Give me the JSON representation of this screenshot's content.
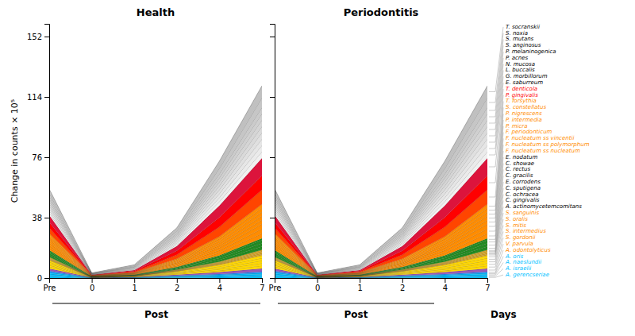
{
  "chart_data": [
    {
      "type": "area",
      "stacked": true,
      "title": "Health",
      "ylabel": "Change in counts × 10⁵",
      "categories": [
        "Pre",
        "0",
        "1",
        "2",
        "4",
        "7"
      ],
      "ylim": [
        0,
        160
      ],
      "yticks": [
        0,
        38,
        76,
        114,
        152
      ],
      "annotations": [
        "Post"
      ],
      "series": [
        {
          "color": "#00BFFF",
          "values": [
            0.9,
            0.05,
            0.1,
            0.3,
            0.5,
            0.8
          ]
        },
        {
          "color": "#00BFFF",
          "values": [
            0.9,
            0.05,
            0.1,
            0.3,
            0.5,
            0.8
          ]
        },
        {
          "color": "#00BFFF",
          "values": [
            0.9,
            0.05,
            0.1,
            0.3,
            0.5,
            0.8
          ]
        },
        {
          "color": "#00BFFF",
          "values": [
            0.9,
            0.05,
            0.1,
            0.3,
            0.5,
            0.8
          ]
        },
        {
          "color": "#1E90FF",
          "values": [
            0.9,
            0.05,
            0.1,
            0.3,
            0.5,
            0.8
          ]
        },
        {
          "color": "#9B59B6",
          "values": [
            1.5,
            0.08,
            0.15,
            0.6,
            1.2,
            2.0
          ]
        },
        {
          "color": "#FFD700",
          "values": [
            1.2,
            0.07,
            0.15,
            0.5,
            1.0,
            1.8
          ]
        },
        {
          "color": "#FFD700",
          "values": [
            1.0,
            0.06,
            0.12,
            0.4,
            0.9,
            1.6
          ]
        },
        {
          "color": "#FFD700",
          "values": [
            1.0,
            0.06,
            0.12,
            0.4,
            0.9,
            1.6
          ]
        },
        {
          "color": "#FFD700",
          "values": [
            1.0,
            0.06,
            0.12,
            0.4,
            0.9,
            1.6
          ]
        },
        {
          "color": "#FFD700",
          "values": [
            1.0,
            0.06,
            0.12,
            0.4,
            0.9,
            1.6
          ]
        },
        {
          "color": "#DAA520",
          "values": [
            0.4,
            0.03,
            0.06,
            0.2,
            0.4,
            0.7
          ]
        },
        {
          "color": "#DAA520",
          "values": [
            0.4,
            0.03,
            0.06,
            0.2,
            0.4,
            0.7
          ]
        },
        {
          "color": "#DAA520",
          "values": [
            0.4,
            0.03,
            0.06,
            0.2,
            0.4,
            0.7
          ]
        },
        {
          "color": "#DAA520",
          "values": [
            0.4,
            0.03,
            0.06,
            0.2,
            0.4,
            0.7
          ]
        },
        {
          "color": "#DAA520",
          "values": [
            0.4,
            0.03,
            0.06,
            0.2,
            0.4,
            0.7
          ]
        },
        {
          "color": "#228B22",
          "values": [
            1.2,
            0.07,
            0.15,
            0.5,
            1.1,
            2.0
          ]
        },
        {
          "color": "#228B22",
          "values": [
            1.2,
            0.07,
            0.15,
            0.5,
            1.1,
            2.0
          ]
        },
        {
          "color": "#228B22",
          "values": [
            1.2,
            0.07,
            0.15,
            0.5,
            1.1,
            2.0
          ]
        },
        {
          "color": "#228B22",
          "values": [
            0.8,
            0.05,
            0.1,
            0.3,
            0.7,
            1.3
          ]
        },
        {
          "color": "#FF8C00",
          "values": [
            1.5,
            0.08,
            0.18,
            0.7,
            1.6,
            3.0
          ]
        },
        {
          "color": "#FF8C00",
          "values": [
            1.5,
            0.08,
            0.18,
            0.7,
            1.6,
            3.0
          ]
        },
        {
          "color": "#FF8C00",
          "values": [
            1.5,
            0.08,
            0.18,
            0.7,
            1.6,
            3.0
          ]
        },
        {
          "color": "#FF8C00",
          "values": [
            1.2,
            0.07,
            0.15,
            0.6,
            1.4,
            2.5
          ]
        },
        {
          "color": "#FF8C00",
          "values": [
            1.2,
            0.07,
            0.15,
            0.6,
            1.4,
            2.5
          ]
        },
        {
          "color": "#FF8C00",
          "values": [
            1.2,
            0.07,
            0.15,
            0.6,
            1.4,
            2.5
          ]
        },
        {
          "color": "#FF8C00",
          "values": [
            1.2,
            0.07,
            0.15,
            0.6,
            1.4,
            2.5
          ]
        },
        {
          "color": "#FF8C00",
          "values": [
            1.2,
            0.07,
            0.15,
            0.6,
            1.4,
            2.5
          ]
        },
        {
          "color": "#FF4500",
          "values": [
            3.5,
            0.15,
            0.5,
            2.5,
            6.0,
            9.0
          ]
        },
        {
          "color": "#FF0000",
          "values": [
            3.5,
            0.15,
            0.5,
            2.5,
            6.0,
            9.0
          ]
        },
        {
          "color": "#DC143C",
          "values": [
            4.5,
            0.18,
            0.6,
            3.0,
            7.5,
            11.0
          ]
        },
        {
          "color": "#F0F0F0",
          "values": [
            1.5,
            0.1,
            0.3,
            1.0,
            2.5,
            4.0
          ]
        },
        {
          "color": "#EBEBEB",
          "values": [
            1.5,
            0.1,
            0.3,
            1.0,
            2.5,
            4.0
          ]
        },
        {
          "color": "#E6E6E6",
          "values": [
            1.5,
            0.1,
            0.3,
            1.0,
            2.5,
            4.0
          ]
        },
        {
          "color": "#E0E0E0",
          "values": [
            1.5,
            0.1,
            0.3,
            1.0,
            2.5,
            4.0
          ]
        },
        {
          "color": "#DADADA",
          "values": [
            1.5,
            0.1,
            0.3,
            1.0,
            2.5,
            4.0
          ]
        },
        {
          "color": "#D5D5D5",
          "values": [
            1.5,
            0.1,
            0.3,
            1.0,
            2.5,
            4.0
          ]
        },
        {
          "color": "#D0D0D0",
          "values": [
            1.5,
            0.1,
            0.3,
            1.0,
            2.5,
            4.0
          ]
        },
        {
          "color": "#CBCBCB",
          "values": [
            1.5,
            0.1,
            0.3,
            1.0,
            2.5,
            4.0
          ]
        },
        {
          "color": "#C6C6C6",
          "values": [
            2.0,
            0.12,
            0.4,
            1.5,
            3.5,
            6.0
          ]
        },
        {
          "color": "#C0C0C0",
          "values": [
            2.5,
            0.15,
            0.5,
            2.0,
            4.5,
            7.5
          ]
        }
      ]
    },
    {
      "type": "area",
      "stacked": true,
      "title": "Periodontitis",
      "xlabel": "Days",
      "categories": [
        "Pre",
        "0",
        "1",
        "2",
        "4",
        "7"
      ],
      "ylim": [
        0,
        160
      ],
      "yticks": [
        0,
        38,
        76,
        114,
        152
      ],
      "tick_labels": "x",
      "annotations": [
        "Post"
      ],
      "series": [
        {
          "name": "A. gerencseriae",
          "color": "#00BFFF",
          "label_color": "#00BFFF",
          "values": [
            0.9,
            0.05,
            0.1,
            0.3,
            0.5,
            0.8
          ]
        },
        {
          "name": "A. israelii",
          "color": "#00BFFF",
          "label_color": "#00BFFF",
          "values": [
            0.9,
            0.05,
            0.1,
            0.3,
            0.5,
            0.8
          ]
        },
        {
          "name": "A. naeslundii",
          "color": "#00BFFF",
          "label_color": "#00BFFF",
          "values": [
            0.9,
            0.05,
            0.1,
            0.3,
            0.5,
            0.8
          ]
        },
        {
          "name": "A. oris",
          "color": "#00BFFF",
          "label_color": "#00BFFF",
          "values": [
            0.9,
            0.05,
            0.1,
            0.3,
            0.5,
            0.8
          ]
        },
        {
          "name": "A. odontolyticus",
          "color": "#1E90FF",
          "label_color": "#FF8C00",
          "values": [
            0.9,
            0.05,
            0.1,
            0.3,
            0.5,
            0.8
          ]
        },
        {
          "name": "V. parvula",
          "color": "#9B59B6",
          "label_color": "#FF8C00",
          "values": [
            1.5,
            0.08,
            0.15,
            0.6,
            1.2,
            2.0
          ]
        },
        {
          "name": "S. gordonii",
          "color": "#FFD700",
          "label_color": "#FF8C00",
          "values": [
            1.2,
            0.07,
            0.15,
            0.5,
            1.0,
            1.8
          ]
        },
        {
          "name": "S. intermedius",
          "color": "#FFD700",
          "label_color": "#FF8C00",
          "values": [
            1.0,
            0.06,
            0.12,
            0.4,
            0.9,
            1.6
          ]
        },
        {
          "name": "S. mitis",
          "color": "#FFD700",
          "label_color": "#FF8C00",
          "values": [
            1.0,
            0.06,
            0.12,
            0.4,
            0.9,
            1.6
          ]
        },
        {
          "name": "S. oralis",
          "color": "#FFD700",
          "label_color": "#FF8C00",
          "values": [
            1.0,
            0.06,
            0.12,
            0.4,
            0.9,
            1.6
          ]
        },
        {
          "name": "S. sanguinis",
          "color": "#FFD700",
          "label_color": "#FF8C00",
          "values": [
            1.0,
            0.06,
            0.12,
            0.4,
            0.9,
            1.6
          ]
        },
        {
          "name": "A. actinomycetemcomitans",
          "color": "#DAA520",
          "label_color": "#000000",
          "values": [
            0.4,
            0.03,
            0.06,
            0.2,
            0.4,
            0.7
          ]
        },
        {
          "name": "C. gingivalis",
          "color": "#DAA520",
          "label_color": "#000000",
          "values": [
            0.4,
            0.03,
            0.06,
            0.2,
            0.4,
            0.7
          ]
        },
        {
          "name": "C. ochracea",
          "color": "#DAA520",
          "label_color": "#000000",
          "values": [
            0.4,
            0.03,
            0.06,
            0.2,
            0.4,
            0.7
          ]
        },
        {
          "name": "C. sputigena",
          "color": "#DAA520",
          "label_color": "#000000",
          "values": [
            0.4,
            0.03,
            0.06,
            0.2,
            0.4,
            0.7
          ]
        },
        {
          "name": "E. corrodens",
          "color": "#DAA520",
          "label_color": "#000000",
          "values": [
            0.4,
            0.03,
            0.06,
            0.2,
            0.4,
            0.7
          ]
        },
        {
          "name": "C. gracilis",
          "color": "#228B22",
          "label_color": "#000000",
          "values": [
            1.2,
            0.07,
            0.15,
            0.5,
            1.1,
            2.0
          ]
        },
        {
          "name": "C. rectus",
          "color": "#228B22",
          "label_color": "#000000",
          "values": [
            1.2,
            0.07,
            0.15,
            0.5,
            1.1,
            2.0
          ]
        },
        {
          "name": "C. showae",
          "color": "#228B22",
          "label_color": "#000000",
          "values": [
            1.2,
            0.07,
            0.15,
            0.5,
            1.1,
            2.0
          ]
        },
        {
          "name": "E. nodatum",
          "color": "#228B22",
          "label_color": "#000000",
          "values": [
            0.8,
            0.05,
            0.1,
            0.3,
            0.7,
            1.3
          ]
        },
        {
          "name": "F. nucleatum ss nucleatum",
          "color": "#FF8C00",
          "label_color": "#FF8C00",
          "values": [
            1.5,
            0.08,
            0.18,
            0.7,
            1.6,
            3.0
          ]
        },
        {
          "name": "F. nucleatum ss polymorphum",
          "color": "#FF8C00",
          "label_color": "#FF8C00",
          "values": [
            1.5,
            0.08,
            0.18,
            0.7,
            1.6,
            3.0
          ]
        },
        {
          "name": "F. nucleatum ss vincentii",
          "color": "#FF8C00",
          "label_color": "#FF8C00",
          "values": [
            1.5,
            0.08,
            0.18,
            0.7,
            1.6,
            3.0
          ]
        },
        {
          "name": "F. periodonticum",
          "color": "#FF8C00",
          "label_color": "#FF8C00",
          "values": [
            1.2,
            0.07,
            0.15,
            0.6,
            1.4,
            2.5
          ]
        },
        {
          "name": "P. micra",
          "color": "#FF8C00",
          "label_color": "#FF8C00",
          "values": [
            1.2,
            0.07,
            0.15,
            0.6,
            1.4,
            2.5
          ]
        },
        {
          "name": "P. intermedia",
          "color": "#FF8C00",
          "label_color": "#FF8C00",
          "values": [
            1.2,
            0.07,
            0.15,
            0.6,
            1.4,
            2.5
          ]
        },
        {
          "name": "P. nigrescens",
          "color": "#FF8C00",
          "label_color": "#FF8C00",
          "values": [
            1.2,
            0.07,
            0.15,
            0.6,
            1.4,
            2.5
          ]
        },
        {
          "name": "S. constellatus",
          "color": "#FF8C00",
          "label_color": "#FF8C00",
          "values": [
            1.2,
            0.07,
            0.15,
            0.6,
            1.4,
            2.5
          ]
        },
        {
          "name": "T. forsythia",
          "color": "#FF4500",
          "label_color": "#FF8C00",
          "values": [
            3.5,
            0.15,
            0.5,
            2.5,
            6.0,
            9.0
          ]
        },
        {
          "name": "P. gingivalis",
          "color": "#FF0000",
          "label_color": "#FF0000",
          "values": [
            3.5,
            0.15,
            0.5,
            2.5,
            6.0,
            9.0
          ]
        },
        {
          "name": "T. denticola",
          "color": "#DC143C",
          "label_color": "#FF0000",
          "values": [
            4.5,
            0.18,
            0.6,
            3.0,
            7.5,
            11.0
          ]
        },
        {
          "name": "E. saburreum",
          "color": "#F0F0F0",
          "label_color": "#000000",
          "values": [
            1.5,
            0.1,
            0.3,
            1.0,
            2.5,
            4.0
          ]
        },
        {
          "name": "G. morbillorum",
          "color": "#EBEBEB",
          "label_color": "#000000",
          "values": [
            1.5,
            0.1,
            0.3,
            1.0,
            2.5,
            4.0
          ]
        },
        {
          "name": "L. buccalis",
          "color": "#E6E6E6",
          "label_color": "#000000",
          "values": [
            1.5,
            0.1,
            0.3,
            1.0,
            2.5,
            4.0
          ]
        },
        {
          "name": "N. mucosa",
          "color": "#E0E0E0",
          "label_color": "#000000",
          "values": [
            1.5,
            0.1,
            0.3,
            1.0,
            2.5,
            4.0
          ]
        },
        {
          "name": "P. acnes",
          "color": "#DADADA",
          "label_color": "#000000",
          "values": [
            1.5,
            0.1,
            0.3,
            1.0,
            2.5,
            4.0
          ]
        },
        {
          "name": "P. melaninogenica",
          "color": "#D5D5D5",
          "label_color": "#000000",
          "values": [
            1.5,
            0.1,
            0.3,
            1.0,
            2.5,
            4.0
          ]
        },
        {
          "name": "S. anginosus",
          "color": "#D0D0D0",
          "label_color": "#000000",
          "values": [
            1.5,
            0.1,
            0.3,
            1.0,
            2.5,
            4.0
          ]
        },
        {
          "name": "S. mutans",
          "color": "#CBCBCB",
          "label_color": "#000000",
          "values": [
            1.5,
            0.1,
            0.3,
            1.0,
            2.5,
            4.0
          ]
        },
        {
          "name": "S. noxia",
          "color": "#C6C6C6",
          "label_color": "#000000",
          "values": [
            2.0,
            0.12,
            0.4,
            1.5,
            3.5,
            6.0
          ]
        },
        {
          "name": "T. socranskii",
          "color": "#C0C0C0",
          "label_color": "#000000",
          "values": [
            2.5,
            0.15,
            0.5,
            2.0,
            4.5,
            7.5
          ]
        }
      ]
    }
  ]
}
